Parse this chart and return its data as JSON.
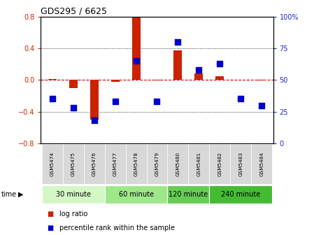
{
  "title": "GDS295 / 6625",
  "samples": [
    "GSM5474",
    "GSM5475",
    "GSM5476",
    "GSM5477",
    "GSM5478",
    "GSM5479",
    "GSM5480",
    "GSM5481",
    "GSM5482",
    "GSM5483",
    "GSM5484"
  ],
  "log_ratio": [
    0.01,
    -0.1,
    -0.5,
    -0.02,
    0.79,
    -0.01,
    0.37,
    0.08,
    0.05,
    0.0,
    -0.01
  ],
  "percentile_rank": [
    35,
    28,
    18,
    33,
    65,
    33,
    80,
    58,
    63,
    35,
    30
  ],
  "groups": [
    {
      "label": "30 minute",
      "start": 0,
      "end": 2,
      "color": "#d4f7c5"
    },
    {
      "label": "60 minute",
      "start": 3,
      "end": 5,
      "color": "#9ee88a"
    },
    {
      "label": "120 minute",
      "start": 6,
      "end": 7,
      "color": "#66cc55"
    },
    {
      "label": "240 minute",
      "start": 8,
      "end": 10,
      "color": "#44bb33"
    }
  ],
  "ylim_left": [
    -0.8,
    0.8
  ],
  "ylim_right": [
    0,
    100
  ],
  "yticks_left": [
    -0.8,
    -0.4,
    0.0,
    0.4,
    0.8
  ],
  "yticks_right": [
    0,
    25,
    50,
    75,
    100
  ],
  "bar_color_red": "#cc2200",
  "dot_color_blue": "#0000cc",
  "hline_color": "#cc0000",
  "bg_color": "#ffffff",
  "left_axis_color": "#cc2200",
  "right_axis_color": "#2222cc",
  "bar_width": 0.4,
  "dot_size": 28
}
